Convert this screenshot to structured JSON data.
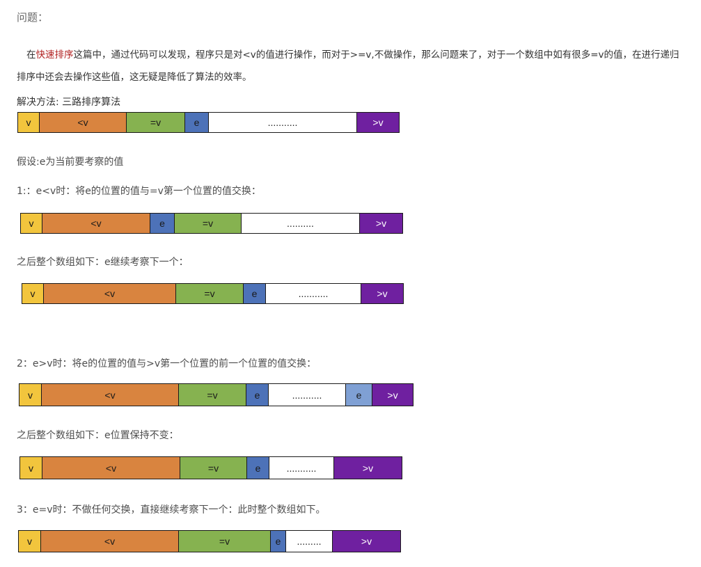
{
  "title": "问题：",
  "intro": {
    "pre": "在",
    "link": "快速排序",
    "post": "这篇中，通过代码可以发现，程序只是对<v的值进行操作，而对于>=v,不做操作，那么问题来了，对于一个数组中如有很多=v的值，在进行递归排序中还会去操作这些值，这无疑是降低了算法的效率。"
  },
  "solution": "解决方法: 三路排序算法",
  "assume": "假设:e为当前要考察的值",
  "step1": "1:：e<v时：将e的位置的值与=v第一个位置的值交换：",
  "after1": "之后整个数组如下：e继续考察下一个：",
  "step2": "2：e>v时：将e的位置的值与>v第一个位置的前一个位置的值交换：",
  "after2": "之后整个数组如下：e位置保持不变：",
  "step3": "3：e=v时：不做任何交换，直接继续考察下一个：此时整个数组如下。",
  "labels": {
    "v": "v",
    "lt": "<v",
    "eq": "=v",
    "e": "e",
    "gt": ">v",
    "dots_a": "...........",
    "dots_b": "..........",
    "dots_c": "...........",
    "dots_d": "........."
  },
  "colors": {
    "v": "#f2c53d",
    "lt": "#d9843f",
    "eq": "#86b250",
    "e": "#4d72b8",
    "e_light": "#7fa0d4",
    "gt": "#6f20a0",
    "link": "#b22222"
  }
}
